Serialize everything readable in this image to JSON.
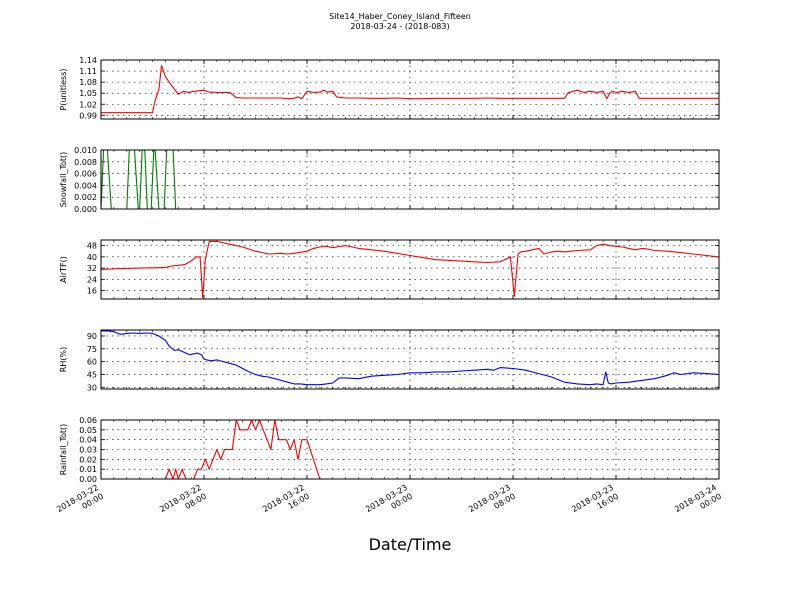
{
  "header": {
    "title": "Site14_Haber_Coney_Island_Fifteen",
    "subtitle": "2018-03-24 - (2018-083)"
  },
  "chart_data": {
    "type": "line",
    "xlabel": "Date/Time",
    "xlim": [
      0,
      48
    ],
    "x_ticks": [
      {
        "x": 0,
        "date": "2018-03-22",
        "time": "00:00"
      },
      {
        "x": 8,
        "date": "2018-03-22",
        "time": "08:00"
      },
      {
        "x": 16,
        "date": "2018-03-22",
        "time": "16:00"
      },
      {
        "x": 24,
        "date": "2018-03-23",
        "time": "00:00"
      },
      {
        "x": 32,
        "date": "2018-03-23",
        "time": "08:00"
      },
      {
        "x": 40,
        "date": "2018-03-23",
        "time": "16:00"
      },
      {
        "x": 48,
        "date": "2018-03-24",
        "time": "00:00"
      }
    ],
    "grid": true,
    "panels": [
      {
        "ylabel": "P(unitless)",
        "ylim": [
          0.98,
          1.14
        ],
        "yticks": [
          0.99,
          1.02,
          1.05,
          1.08,
          1.11,
          1.14
        ],
        "yticklabels": [
          "0.99",
          "1.02",
          "1.05",
          "1.08",
          "1.11",
          "1.14"
        ],
        "color": "#ff0000",
        "x": [
          0,
          1,
          2,
          3,
          4,
          4.2,
          4.5,
          4.7,
          5.0,
          5.4,
          6.0,
          6.4,
          6.8,
          7.2,
          8,
          8.4,
          9,
          10,
          10.5,
          11,
          12,
          13,
          14,
          14.5,
          15,
          15.3,
          15.6,
          16,
          16.5,
          17,
          17.3,
          17.6,
          18,
          18.3,
          19,
          20,
          21,
          22,
          23,
          24,
          25,
          26,
          27,
          28,
          29,
          30,
          31,
          32,
          33,
          34,
          35,
          36,
          36.3,
          36.6,
          37,
          37.5,
          38,
          38.5,
          39,
          39.3,
          39.5,
          39.7,
          40,
          40.5,
          41,
          41.5,
          41.8,
          42,
          43,
          44,
          45,
          46,
          47,
          48
        ],
        "y": [
          0.997,
          0.997,
          0.997,
          0.997,
          0.997,
          1.03,
          1.06,
          1.125,
          1.095,
          1.075,
          1.047,
          1.055,
          1.052,
          1.055,
          1.058,
          1.053,
          1.052,
          1.052,
          1.038,
          1.037,
          1.037,
          1.037,
          1.037,
          1.035,
          1.036,
          1.04,
          1.035,
          1.055,
          1.052,
          1.053,
          1.058,
          1.053,
          1.055,
          1.04,
          1.037,
          1.037,
          1.036,
          1.036,
          1.037,
          1.035,
          1.035,
          1.036,
          1.036,
          1.036,
          1.036,
          1.037,
          1.036,
          1.036,
          1.036,
          1.036,
          1.036,
          1.036,
          1.052,
          1.054,
          1.058,
          1.052,
          1.055,
          1.052,
          1.055,
          1.035,
          1.05,
          1.055,
          1.052,
          1.055,
          1.052,
          1.055,
          1.036,
          1.036,
          1.036,
          1.036,
          1.036,
          1.036,
          1.036,
          1.036
        ]
      },
      {
        "ylabel": "Snowfall_Tot()",
        "ylim": [
          0,
          0.01
        ],
        "yticks": [
          0.0,
          0.002,
          0.004,
          0.006,
          0.008,
          0.01
        ],
        "yticklabels": [
          "0.000",
          "0.002",
          "0.004",
          "0.006",
          "0.008",
          "0.010"
        ],
        "color": "#007f00",
        "x": [
          0,
          0.2,
          0.35,
          0.5,
          0.8,
          2.0,
          2.2,
          2.4,
          2.6,
          2.9,
          3.0,
          3.2,
          3.4,
          3.6,
          3.8,
          3.9,
          4.1,
          4.2,
          4.5,
          4.7,
          4.9,
          5.1,
          5.3,
          5.6,
          5.8,
          6.0,
          10,
          20,
          30,
          40,
          48
        ],
        "y": [
          0,
          0.01,
          0.01,
          0.01,
          0,
          0,
          0.01,
          0.01,
          0.01,
          0,
          0,
          0.01,
          0.01,
          0,
          0,
          0,
          0.01,
          0.01,
          0,
          0,
          0,
          0.01,
          0.01,
          0.01,
          0,
          0,
          0,
          0,
          0,
          0,
          0
        ]
      },
      {
        "ylabel": "AirTF()",
        "ylim": [
          10,
          52
        ],
        "yticks": [
          16,
          24,
          32,
          40,
          48
        ],
        "yticklabels": [
          "16",
          "24",
          "32",
          "40",
          "48"
        ],
        "color": "#ff0000",
        "x": [
          0,
          1,
          2,
          3,
          4,
          5,
          5.5,
          6,
          6.5,
          7,
          7.4,
          7.7,
          7.9,
          8.1,
          8.4,
          9,
          10,
          11,
          12,
          13,
          14,
          14.5,
          15,
          16,
          16.5,
          17,
          17.5,
          18,
          18.3,
          19,
          20,
          22,
          24,
          26,
          28,
          29,
          30,
          31,
          31.6,
          31.8,
          32.1,
          32.4,
          32.6,
          33,
          33.5,
          34,
          34.4,
          34.8,
          35,
          35.5,
          36,
          37,
          38,
          38.5,
          39,
          39.5,
          40,
          40.5,
          41,
          41.5,
          42,
          42.5,
          43,
          44,
          45,
          46,
          47,
          48
        ],
        "y": [
          31,
          31.5,
          31.8,
          32,
          32.2,
          32.5,
          33.5,
          34,
          34.5,
          37,
          40,
          40,
          11,
          38,
          51,
          51,
          49,
          47,
          44,
          42,
          42.5,
          42,
          42.5,
          44,
          46,
          47,
          47.5,
          46.5,
          47,
          48,
          46,
          44,
          41,
          38,
          37,
          36.5,
          36,
          36.5,
          39,
          40,
          12,
          42,
          43.5,
          44,
          45,
          46,
          42,
          43,
          43.5,
          44,
          43.5,
          44.5,
          45,
          48,
          49,
          48,
          47.5,
          47,
          46,
          45,
          46,
          45.5,
          44.5,
          44,
          43,
          42,
          41,
          40
        ]
      },
      {
        "ylabel": "RH(%)",
        "ylim": [
          28,
          97
        ],
        "yticks": [
          30,
          45,
          60,
          75,
          90
        ],
        "yticklabels": [
          "30",
          "45",
          "60",
          "75",
          "90"
        ],
        "color": "#0000ff",
        "x": [
          0,
          0.5,
          1,
          1.5,
          2,
          2.5,
          3,
          3.5,
          4,
          4.5,
          5,
          5.3,
          5.7,
          6,
          6.3,
          6.6,
          6.9,
          7.2,
          7.5,
          7.8,
          8,
          8.5,
          9,
          9.5,
          10,
          10.5,
          11,
          11.5,
          12,
          12.5,
          13,
          13.5,
          14,
          14.5,
          15,
          15.5,
          16,
          16.5,
          17,
          17.5,
          18,
          18.5,
          19,
          20,
          21,
          22,
          23,
          24,
          25,
          26,
          27,
          28,
          29,
          30,
          30.5,
          31,
          32,
          33,
          34,
          35,
          36,
          37,
          38,
          38.5,
          39,
          39.2,
          39.4,
          39.6,
          40,
          41,
          42,
          43,
          44,
          44.5,
          45,
          46,
          47,
          48
        ],
        "y": [
          96,
          96,
          95,
          92,
          93,
          93.5,
          93,
          93.5,
          93,
          90,
          85,
          78,
          73,
          74,
          72,
          70,
          68,
          69,
          70,
          68,
          63,
          61,
          62,
          60,
          58,
          56,
          52,
          48,
          45,
          43,
          42,
          40,
          38,
          36,
          34,
          34,
          33,
          33,
          33,
          34,
          35,
          41,
          41,
          40,
          43,
          44,
          45,
          47,
          47,
          48,
          48,
          49,
          50,
          51,
          50,
          53,
          52,
          50,
          46,
          42,
          36,
          34,
          33,
          34,
          33,
          48,
          35,
          34,
          35,
          36,
          38,
          40,
          44,
          47,
          45,
          47,
          46,
          45
        ]
      },
      {
        "ylabel": "Rainfall_Tot()",
        "ylim": [
          0,
          0.06
        ],
        "yticks": [
          0.0,
          0.01,
          0.02,
          0.03,
          0.04,
          0.05,
          0.06
        ],
        "yticklabels": [
          "0.00",
          "0.01",
          "0.02",
          "0.03",
          "0.04",
          "0.05",
          "0.06"
        ],
        "color": "#ff0000",
        "x": [
          0,
          2,
          4,
          5,
          5.3,
          5.6,
          5.8,
          6.0,
          6.3,
          6.6,
          6.9,
          7.2,
          7.5,
          7.8,
          8.1,
          8.4,
          8.7,
          9.0,
          9.3,
          9.6,
          9.9,
          10.2,
          10.5,
          10.8,
          11.1,
          11.4,
          11.7,
          12.0,
          12.3,
          12.6,
          12.9,
          13.2,
          13.5,
          13.8,
          14.1,
          14.4,
          14.7,
          15.0,
          15.3,
          15.6,
          16.0,
          16.5,
          17,
          20,
          24,
          28,
          32,
          36,
          40,
          44,
          48
        ],
        "y": [
          0,
          0,
          0,
          0,
          0.01,
          0,
          0.01,
          0,
          0.01,
          0,
          0,
          0,
          0.01,
          0.01,
          0.02,
          0.01,
          0.02,
          0.03,
          0.02,
          0.03,
          0.03,
          0.03,
          0.06,
          0.05,
          0.05,
          0.05,
          0.06,
          0.05,
          0.06,
          0.05,
          0.04,
          0.03,
          0.06,
          0.04,
          0.04,
          0.04,
          0.03,
          0.04,
          0.02,
          0.04,
          0.04,
          0.02,
          0,
          0,
          0,
          0,
          0,
          0,
          0,
          0,
          0
        ]
      }
    ]
  }
}
